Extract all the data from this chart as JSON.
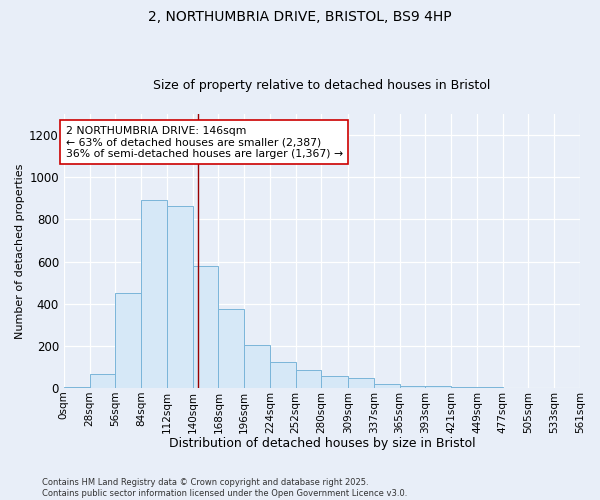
{
  "title_line1": "2, NORTHUMBRIA DRIVE, BRISTOL, BS9 4HP",
  "title_line2": "Size of property relative to detached houses in Bristol",
  "xlabel": "Distribution of detached houses by size in Bristol",
  "ylabel": "Number of detached properties",
  "bin_edges": [
    0,
    28,
    56,
    84,
    112,
    140,
    168,
    196,
    224,
    252,
    280,
    309,
    337,
    365,
    393,
    421,
    449,
    477,
    505,
    533,
    561
  ],
  "bar_heights": [
    5,
    65,
    450,
    890,
    865,
    580,
    375,
    205,
    125,
    85,
    55,
    45,
    20,
    10,
    8,
    5,
    3,
    2,
    1,
    1
  ],
  "bar_color": "#d6e8f7",
  "bar_edgecolor": "#7ab5d9",
  "vline_x": 146,
  "vline_color": "#990000",
  "annotation_text": "2 NORTHUMBRIA DRIVE: 146sqm\n← 63% of detached houses are smaller (2,387)\n36% of semi-detached houses are larger (1,367) →",
  "annotation_box_facecolor": "#ffffff",
  "annotation_box_edgecolor": "#cc0000",
  "annotation_fontsize": 7.8,
  "ylim": [
    0,
    1300
  ],
  "yticks": [
    0,
    200,
    400,
    600,
    800,
    1000,
    1200
  ],
  "bg_color": "#e8eef8",
  "plot_bg_color": "#e8eef8",
  "footer_text": "Contains HM Land Registry data © Crown copyright and database right 2025.\nContains public sector information licensed under the Open Government Licence v3.0.",
  "title_fontsize": 10,
  "subtitle_fontsize": 9,
  "xlabel_fontsize": 9,
  "ylabel_fontsize": 8,
  "tick_fontsize": 7.5,
  "ytick_fontsize": 8.5
}
